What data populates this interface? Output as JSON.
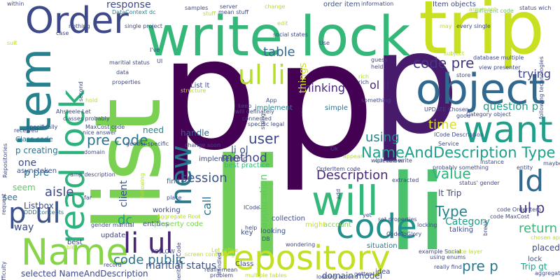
{
  "colors": {
    "background": "#ffffff",
    "palette": [
      "#440154",
      "#482878",
      "#3e4989",
      "#31688e",
      "#26828e",
      "#1f9e89",
      "#35b779",
      "#6ece58",
      "#b5de2b",
      "#fde725"
    ]
  },
  "words": [
    {
      "id": "p-big-1",
      "text": "p",
      "color": "#440154"
    },
    {
      "id": "p-big-2",
      "text": "p",
      "color": "#440154"
    },
    {
      "id": "p-big-3",
      "text": "p",
      "color": "#481a6c"
    },
    {
      "id": "li-big",
      "text": "li",
      "color": "#6ece58"
    },
    {
      "id": "li-big-2",
      "text": "li",
      "color": "#4ac16d"
    },
    {
      "id": "list",
      "text": "list",
      "color": "#7ad151"
    },
    {
      "id": "trip",
      "text": "trip",
      "color": "#c8e020"
    },
    {
      "id": "write-lock",
      "text": "write lock",
      "color": "#35b779"
    },
    {
      "id": "object",
      "text": "object",
      "color": "#31688e"
    },
    {
      "id": "item",
      "text": "item",
      "color": "#26828e"
    },
    {
      "id": "order",
      "text": "Order",
      "color": "#3e4989"
    },
    {
      "id": "want",
      "text": "want",
      "color": "#1f9e89"
    },
    {
      "id": "will",
      "text": "will",
      "color": "#35b779"
    },
    {
      "id": "repository",
      "text": "repository",
      "color": "#c2df23"
    },
    {
      "id": "name",
      "text": "Name",
      "color": "#86d549"
    },
    {
      "id": "code",
      "text": "code",
      "color": "#21918c"
    },
    {
      "id": "read-lock",
      "text": "read lock",
      "color": "#2db27d"
    },
    {
      "id": "new",
      "text": "new",
      "color": "#2a788e"
    },
    {
      "id": "id",
      "text": "Id",
      "color": "#31688e"
    },
    {
      "id": "p-ul",
      "text": "p ul",
      "color": "#3b528b"
    },
    {
      "id": "li-ul",
      "text": "li ul",
      "color": "#482475"
    },
    {
      "id": "ul-li",
      "text": "ul li",
      "color": "#b5de2b"
    },
    {
      "id": "name-desc-type",
      "text": "NameAndDescription Type",
      "color": "#1f9e89"
    },
    {
      "id": "code-pre",
      "text": "code pre",
      "color": "#443983"
    },
    {
      "id": "pre-code",
      "text": "pre code",
      "color": "#2c728e"
    },
    {
      "id": "time",
      "text": "time",
      "color": "#d8e219"
    },
    {
      "id": "user",
      "text": "user",
      "color": "#3e4989"
    },
    {
      "id": "using",
      "text": "using",
      "color": "#26828e"
    },
    {
      "id": "session",
      "text": "session",
      "color": "#3b528b"
    },
    {
      "id": "method",
      "text": "method",
      "color": "#414487"
    },
    {
      "id": "table",
      "text": "table",
      "color": "#31688e"
    },
    {
      "id": "value",
      "text": "value",
      "color": "#2db27d"
    },
    {
      "id": "type",
      "text": "Type",
      "color": "#26828e"
    },
    {
      "id": "ul-p",
      "text": "ul p",
      "color": "#443983"
    },
    {
      "id": "return",
      "text": "return",
      "color": "#35b779"
    },
    {
      "id": "pre-p",
      "text": "pre p",
      "color": "#2a788e"
    },
    {
      "id": "description",
      "text": "Description",
      "color": "#482878"
    },
    {
      "id": "aisle",
      "text": "aisle",
      "color": "#3e4989"
    },
    {
      "id": "code-public",
      "text": "code public",
      "color": "#2c728e"
    },
    {
      "id": "dc",
      "text": "dc",
      "color": "#1f9e89"
    },
    {
      "id": "ol-li",
      "text": "ol li",
      "color": "#482878"
    },
    {
      "id": "trying",
      "text": "trying",
      "color": "#414487"
    },
    {
      "id": "question-p",
      "text": "question p",
      "color": "#1f9e89"
    },
    {
      "id": "thinking",
      "text": "thinking",
      "color": "#482878"
    },
    {
      "id": "maritial-status",
      "text": "maritial status",
      "color": "#3b528b"
    },
    {
      "id": "selected-name",
      "text": "selected NameAndDescription",
      "color": "#3e4989"
    },
    {
      "id": "p-creating",
      "text": "p creating",
      "color": "#2c728e"
    },
    {
      "id": "p-pre",
      "text": "p pre",
      "color": "#2c728e"
    },
    {
      "id": "one",
      "text": "one",
      "color": "#3e4989"
    },
    {
      "id": "response",
      "text": "response",
      "color": "#3e4989"
    },
    {
      "id": "handle",
      "text": "handle",
      "color": "#31688e"
    },
    {
      "id": "need",
      "text": "need",
      "color": "#26828e"
    },
    {
      "id": "li-ol",
      "text": "li ol",
      "color": "#3b528b"
    },
    {
      "id": "client",
      "text": "client",
      "color": "#3b528b"
    },
    {
      "id": "call",
      "text": "call",
      "color": "#2c728e"
    },
    {
      "id": "application",
      "text": "application",
      "color": "#5ec962"
    },
    {
      "id": "things",
      "text": "things",
      "color": "#d2e21b"
    },
    {
      "id": "category",
      "text": "Category",
      "color": "#1f9e89"
    },
    {
      "id": "domain-model",
      "text": "domain model",
      "color": "#3b528b"
    },
    {
      "id": "lt-trip",
      "text": "lt Trip",
      "color": "#3e4989"
    },
    {
      "id": "placed",
      "text": "placed",
      "color": "#3e4989"
    },
    {
      "id": "lock",
      "text": "lock",
      "color": "#3b528b"
    },
    {
      "id": "trip-gt",
      "text": "Trip gt",
      "color": "#1f9e89"
    },
    {
      "id": "listbox",
      "text": "Listbox",
      "color": "#3e4989"
    },
    {
      "id": "way",
      "text": "way",
      "color": "#3e4989"
    },
    {
      "id": "see",
      "text": "see",
      "color": "#2c728e"
    },
    {
      "id": "seem",
      "text": "seem",
      "color": "#5ec962"
    },
    {
      "id": "class-code",
      "text": "Class code",
      "color": "#2c728e"
    },
    {
      "id": "asynctoken",
      "text": "asynctoken",
      "color": "#3b528b"
    },
    {
      "id": "working",
      "text": "working",
      "color": "#3e4989"
    },
    {
      "id": "best",
      "text": "best",
      "color": "#3e4989"
    },
    {
      "id": "update",
      "text": "update",
      "color": "#414487"
    },
    {
      "id": "entities",
      "text": "entities",
      "color": "#3e4989"
    },
    {
      "id": "property-code",
      "text": "property code",
      "color": "#7ad151"
    },
    {
      "id": "ddd-concepts",
      "text": "DDD concepts",
      "color": "#2c728e"
    },
    {
      "id": "talking",
      "text": "talking",
      "color": "#3e4989"
    },
    {
      "id": "situation",
      "text": "situation",
      "color": "#2c728e"
    },
    {
      "id": "account",
      "text": "account",
      "color": "#7ad151"
    },
    {
      "id": "might",
      "text": "might",
      "color": "#c8e020"
    },
    {
      "id": "collection",
      "text": "collection",
      "color": "#3e4989"
    },
    {
      "id": "looking",
      "text": "looking",
      "color": "#3b528b"
    },
    {
      "id": "key",
      "text": "key",
      "color": "#3e4989"
    },
    {
      "id": "class",
      "text": "Class",
      "color": "#3e4989"
    },
    {
      "id": "find",
      "text": "find",
      "color": "#31688e"
    },
    {
      "id": "best-practice",
      "text": "best practice",
      "color": "#35b779"
    },
    {
      "id": "implementing",
      "text": "implementing",
      "color": "#3e4989"
    },
    {
      "id": "implement",
      "text": "implement",
      "color": "#26828e"
    },
    {
      "id": "list-lt",
      "text": "List lt",
      "color": "#3e4989"
    },
    {
      "id": "app",
      "text": "App",
      "color": "#3b528b"
    },
    {
      "id": "item-objects",
      "text": "Item objects",
      "color": "#3e4989"
    },
    {
      "id": "order-item",
      "text": "order item",
      "color": "#3b528b"
    },
    {
      "id": "orderitem-code",
      "text": "OrderItem code",
      "color": "#3e4989"
    },
    {
      "id": "service",
      "text": "Service",
      "color": "#3e4989"
    },
    {
      "id": "code-description",
      "text": "ICode Description",
      "color": "#3e4989"
    },
    {
      "id": "category-object",
      "text": "Category object",
      "color": "#3e4989"
    },
    {
      "id": "update-chosen",
      "text": "UPDATE Chosen",
      "color": "#3e4989"
    },
    {
      "id": "maxcost-code",
      "text": "MaxCost code",
      "color": "#3e4989"
    },
    {
      "id": "code-maxcost",
      "text": "code MaxCost",
      "color": "#3e4989"
    },
    {
      "id": "code-orderitem",
      "text": "code OrderItem",
      "color": "#3e4989"
    },
    {
      "id": "domain",
      "text": "domain",
      "color": "#3e4989"
    },
    {
      "id": "data",
      "text": "data",
      "color": "#3e4989"
    },
    {
      "id": "datacontext-dc",
      "text": "DataContext dc",
      "color": "#26828e"
    },
    {
      "id": "simple",
      "text": "simple",
      "color": "#2c728e"
    },
    {
      "id": "something",
      "text": "something",
      "color": "#3e4989"
    },
    {
      "id": "held",
      "text": "held",
      "color": "#3e4989"
    },
    {
      "id": "guess",
      "text": "guess",
      "color": "#3e4989"
    },
    {
      "id": "rich",
      "text": "rich",
      "color": "#3e4989"
    },
    {
      "id": "server",
      "text": "server",
      "color": "#3e4989"
    },
    {
      "id": "change",
      "text": "change",
      "color": "#b5de2b"
    },
    {
      "id": "samples",
      "text": "samples",
      "color": "#3e4989"
    },
    {
      "id": "stuff",
      "text": "stuff",
      "color": "#b5de2b"
    },
    {
      "id": "mean-stuff",
      "text": "mean stuff",
      "color": "#3e4989"
    },
    {
      "id": "information",
      "text": "information",
      "color": "#3e4989"
    },
    {
      "id": "status-wich",
      "text": "status wich",
      "color": "#3e4989"
    },
    {
      "id": "different-code",
      "text": "different code",
      "color": "#5ec962"
    },
    {
      "id": "argument",
      "text": "argument",
      "color": "#b5de2b"
    },
    {
      "id": "every-single",
      "text": "every single",
      "color": "#3e4989"
    },
    {
      "id": "may",
      "text": "may",
      "color": "#b5de2b"
    },
    {
      "id": "subject",
      "text": "subject",
      "color": "#b5de2b"
    },
    {
      "id": "database-multiple",
      "text": "database multiple",
      "color": "#3e4989"
    },
    {
      "id": "view-presenter",
      "text": "view presenter",
      "color": "#3e4989"
    },
    {
      "id": "store",
      "text": "store",
      "color": "#3e4989"
    },
    {
      "id": "good",
      "text": "good",
      "color": "#3e4989"
    },
    {
      "id": "following-technologies",
      "text": "following technologies",
      "color": "#3e4989"
    },
    {
      "id": "maybe",
      "text": "maybe",
      "color": "#3e4989"
    },
    {
      "id": "entity",
      "text": "entity",
      "color": "#3e4989"
    },
    {
      "id": "instance",
      "text": "instance",
      "color": "#3e4989"
    },
    {
      "id": "probably-something",
      "text": "probably something",
      "color": "#3e4989"
    },
    {
      "id": "queued-write",
      "text": "queued write",
      "color": "#3e4989"
    },
    {
      "id": "wich-values",
      "text": "wich values",
      "color": "#3e4989"
    },
    {
      "id": "appear",
      "text": "appear",
      "color": "#b5de2b"
    },
    {
      "id": "ok",
      "text": "Ok",
      "color": "#3e4989"
    },
    {
      "id": "code-glory",
      "text": "CodeToGlory",
      "color": "#3e4989"
    },
    {
      "id": "example-social",
      "text": "example Social",
      "color": "#3e4989"
    },
    {
      "id": "service-layer",
      "text": "service layer",
      "color": "#b5de2b"
    },
    {
      "id": "using-enums",
      "text": "using enums",
      "color": "#3e4989"
    },
    {
      "id": "really-find",
      "text": "really find",
      "color": "#3e4989"
    },
    {
      "id": "aggregate",
      "text": "aggregate",
      "color": "#3e4989"
    },
    {
      "id": "chosen-approach",
      "text": "chosen approach",
      "color": "#b5de2b"
    },
    {
      "id": "gotten",
      "text": "gotten",
      "color": "#3e4989"
    },
    {
      "id": "idea",
      "text": "idea",
      "color": "#3e4989"
    },
    {
      "id": "looking-around",
      "text": "looking around",
      "color": "#3e4989"
    },
    {
      "id": "multiple-tables",
      "text": "multiple tables",
      "color": "#b5de2b"
    },
    {
      "id": "problem",
      "text": "problem",
      "color": "#3e4989"
    },
    {
      "id": "really-mean",
      "text": "really mean",
      "color": "#3e4989"
    },
    {
      "id": "lot-refine",
      "text": "Let refine",
      "color": "#b5de2b"
    },
    {
      "id": "follow",
      "text": "FOLLOW",
      "color": "#3e4989"
    },
    {
      "id": "record",
      "text": "record",
      "color": "#3e4989"
    },
    {
      "id": "gender-maritial",
      "text": "gender maritial",
      "color": "#3e4989"
    },
    {
      "id": "nice-answer",
      "text": "nice answer",
      "color": "#3e4989"
    },
    {
      "id": "gender-specific",
      "text": "gender specific",
      "color": "#3e4989"
    },
    {
      "id": "received",
      "text": "received",
      "color": "#3e4989"
    },
    {
      "id": "repositories",
      "text": "Repositories",
      "color": "#3e4989"
    },
    {
      "id": "specifically",
      "text": "specifically",
      "color": "#3e4989"
    },
    {
      "id": "able",
      "text": "able",
      "color": "#b5de2b"
    },
    {
      "id": "ahsteele-let",
      "text": "Ahsteele Let",
      "color": "#3e4989"
    },
    {
      "id": "classes-probably",
      "text": "classes probably",
      "color": "#3e4989"
    },
    {
      "id": "within",
      "text": "within",
      "color": "#3e4989"
    },
    {
      "id": "case",
      "text": "case",
      "color": "#3e4989"
    },
    {
      "id": "nothing",
      "text": "nothing",
      "color": "#3e4989"
    },
    {
      "id": "single-project",
      "text": "single project",
      "color": "#3e4989"
    },
    {
      "id": "maritial-status-small",
      "text": "maritial status",
      "color": "#3e4989"
    },
    {
      "id": "social-states",
      "text": "social states",
      "color": "#3e4989"
    },
    {
      "id": "connected",
      "text": "connected",
      "color": "#3e4989"
    },
    {
      "id": "specific-legal",
      "text": "specific legal",
      "color": "#3e4989"
    },
    {
      "id": "will-definately",
      "text": "will definately",
      "color": "#3e4989"
    },
    {
      "id": "change-soon",
      "text": "change soon",
      "color": "#3e4989"
    },
    {
      "id": "string",
      "text": "string",
      "color": "#3e4989"
    },
    {
      "id": "structure",
      "text": "structure",
      "color": "#b5de2b"
    },
    {
      "id": "properties",
      "text": "properties",
      "color": "#3e4989"
    },
    {
      "id": "second",
      "text": "second",
      "color": "#3e4989"
    },
    {
      "id": "request",
      "text": "request",
      "color": "#3e4989"
    },
    {
      "id": "difficulty",
      "text": "difficulty",
      "color": "#3e4989"
    },
    {
      "id": "far",
      "text": "far",
      "color": "#3e4989"
    },
    {
      "id": "amp-description",
      "text": "amp description",
      "color": "#3e4989"
    },
    {
      "id": "aggregate-root",
      "text": "Aggregate Root",
      "color": "#b5de2b"
    },
    {
      "id": "place",
      "text": "place",
      "color": "#3e4989"
    },
    {
      "id": "inheriting-icode",
      "text": "inheriting ICode",
      "color": "#3e4989"
    },
    {
      "id": "icode",
      "text": "ICode",
      "color": "#3e4989"
    },
    {
      "id": "help",
      "text": "help",
      "color": "#3e4989"
    },
    {
      "id": "db",
      "text": "DB",
      "color": "#3e4989"
    },
    {
      "id": "screen-containing",
      "text": "screen containing",
      "color": "#b5de2b"
    },
    {
      "id": "wondering",
      "text": "wondering",
      "color": "#3e4989"
    },
    {
      "id": "handled",
      "text": "handled",
      "color": "#3e4989"
    },
    {
      "id": "extracted",
      "text": "extracted",
      "color": "#3e4989"
    },
    {
      "id": "set-properties",
      "text": "set properties",
      "color": "#3e4989"
    },
    {
      "id": "yet",
      "text": "yet",
      "color": "#3e4989"
    },
    {
      "id": "locking",
      "text": "locking",
      "color": "#3e4989"
    },
    {
      "id": "status-gender",
      "text": "status' gender",
      "color": "#3e4989"
    },
    {
      "id": "break",
      "text": "break",
      "color": "#3e4989"
    },
    {
      "id": "add",
      "text": "add",
      "color": "#3e4989"
    },
    {
      "id": "use",
      "text": "Use",
      "color": "#3e4989"
    },
    {
      "id": "edit",
      "text": "edit",
      "color": "#b5de2b"
    },
    {
      "id": "keep",
      "text": "keep",
      "color": "#3e4989"
    },
    {
      "id": "ive",
      "text": "I've",
      "color": "#3e4989"
    },
    {
      "id": "ui",
      "text": "UI",
      "color": "#3e4989"
    },
    {
      "id": "hold",
      "text": "hold",
      "color": "#b5de2b"
    },
    {
      "id": "following",
      "text": "following",
      "color": "#b5de2b"
    },
    {
      "id": "rich2",
      "text": "rich",
      "color": "#b5de2b"
    },
    {
      "id": "suit",
      "text": "suit",
      "color": "#b5de2b"
    }
  ]
}
